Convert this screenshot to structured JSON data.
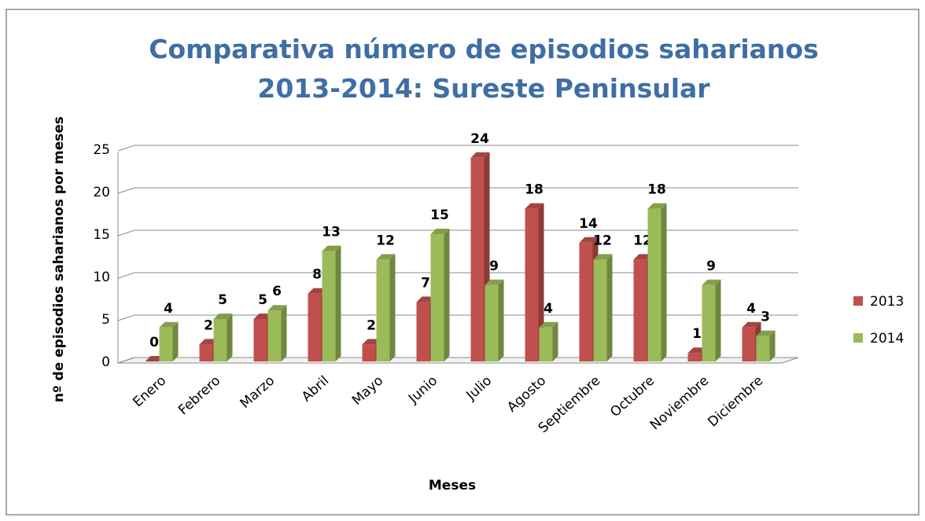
{
  "chart_data": {
    "type": "bar3d",
    "title": "Comparativa número de episodios saharianos 2013-2014: Sureste Peninsular",
    "x_label": "Meses",
    "y_label": "nº de episodios saharianos por meses",
    "categories": [
      "Enero",
      "Febrero",
      "Marzo",
      "Abril",
      "Mayo",
      "Junio",
      "Julio",
      "Agosto",
      "Septiembre",
      "Octubre",
      "Noviembre",
      "Diciembre"
    ],
    "series": [
      {
        "name": "2013",
        "color": "#c0504d",
        "values": [
          0,
          2,
          5,
          8,
          2,
          7,
          24,
          18,
          14,
          12,
          1,
          4
        ]
      },
      {
        "name": "2014",
        "color": "#9bbb59",
        "values": [
          4,
          5,
          6,
          13,
          12,
          15,
          9,
          4,
          12,
          18,
          9,
          3
        ]
      }
    ],
    "ylim": [
      0,
      25
    ],
    "yticks": [
      0,
      5,
      10,
      15,
      20,
      25
    ],
    "grid": true,
    "legend": "right"
  }
}
